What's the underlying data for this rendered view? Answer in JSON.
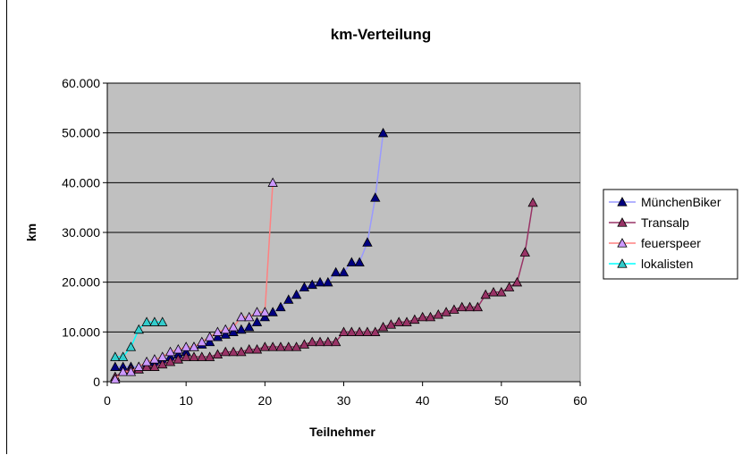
{
  "chart_data": {
    "type": "line",
    "title": "km-Verteilung",
    "xlabel": "Teilnehmer",
    "ylabel": "km",
    "xlim": [
      0,
      60
    ],
    "ylim": [
      0,
      60000
    ],
    "x_ticks": [
      "0",
      "10",
      "20",
      "30",
      "40",
      "50",
      "60"
    ],
    "y_ticks": [
      "0",
      "10.000",
      "20.000",
      "30.000",
      "40.000",
      "50.000",
      "60.000"
    ],
    "x_tick_values": [
      0,
      10,
      20,
      30,
      40,
      50,
      60
    ],
    "y_tick_values": [
      0,
      10000,
      20000,
      30000,
      40000,
      50000,
      60000
    ],
    "grid": "horizontal",
    "legend_position": "right",
    "plot_background": "#c0c0c0",
    "series": [
      {
        "name": "MünchenBiker",
        "line_color": "#9999ff",
        "marker_fill": "#000080",
        "marker": "triangle",
        "values": [
          3000,
          3000,
          3000,
          3000,
          3500,
          4000,
          4500,
          5000,
          5500,
          6000,
          7000,
          7500,
          8000,
          9000,
          9500,
          10000,
          10500,
          11000,
          12000,
          13000,
          14000,
          15000,
          16500,
          17500,
          19000,
          19500,
          20000,
          20000,
          22000,
          22000,
          24000,
          24000,
          28000,
          37000,
          50000
        ]
      },
      {
        "name": "Transalp",
        "line_color": "#993366",
        "marker_fill": "#993366",
        "marker": "triangle",
        "values": [
          1000,
          2000,
          2500,
          2500,
          3000,
          3000,
          3500,
          4000,
          4500,
          5000,
          5000,
          5000,
          5000,
          5500,
          6000,
          6000,
          6000,
          6500,
          6500,
          7000,
          7000,
          7000,
          7000,
          7000,
          7500,
          8000,
          8000,
          8000,
          8000,
          10000,
          10000,
          10000,
          10000,
          10000,
          11000,
          11500,
          12000,
          12000,
          12500,
          13000,
          13000,
          13500,
          14000,
          14500,
          15000,
          15000,
          15000,
          17500,
          18000,
          18000,
          19000,
          20000,
          26000,
          36000
        ]
      },
      {
        "name": "feuerspeer",
        "line_color": "#ff8080",
        "marker_fill": "#cc99ff",
        "marker": "triangle",
        "values": [
          500,
          2000,
          2000,
          3000,
          4000,
          4500,
          5000,
          6000,
          6500,
          7000,
          7000,
          8000,
          9000,
          10000,
          10500,
          11000,
          13000,
          13000,
          14000,
          14000,
          40000
        ]
      },
      {
        "name": "lokalisten",
        "line_color": "#00ffff",
        "marker_fill": "#33cccc",
        "marker": "triangle",
        "values": [
          5000,
          5000,
          7000,
          10500,
          12000,
          12000,
          12000
        ]
      }
    ]
  }
}
